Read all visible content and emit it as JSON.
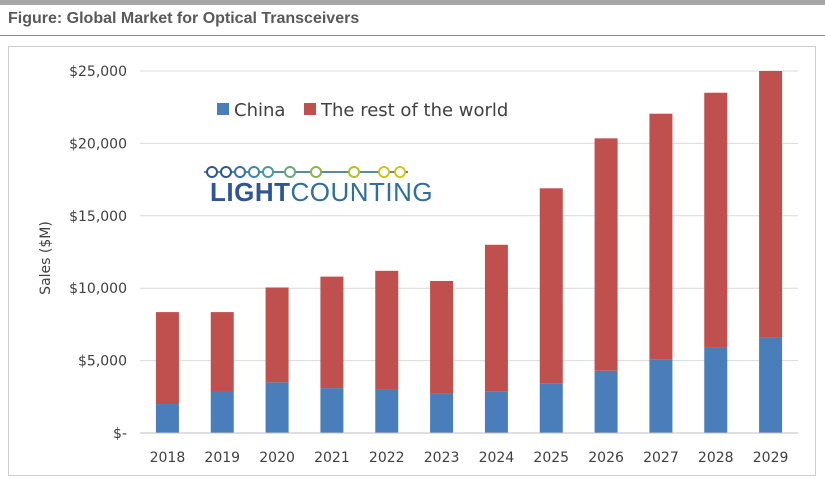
{
  "figure": {
    "title": "Figure: Global Market for Optical Transceivers"
  },
  "logo": {
    "part1": "LIGHT",
    "part2": "COUNTING",
    "color1": "#2f5597",
    "color2": "#2e6f9e"
  },
  "colors": {
    "china": "#4a7ebb",
    "rest": "#c0504d",
    "grid": "#d9d9d9",
    "axis": "#bfbfbf"
  },
  "chart_data": {
    "type": "bar",
    "stacked": true,
    "title": "Figure: Global Market for Optical Transceivers",
    "xlabel": "",
    "ylabel": "Sales ($M)",
    "ylim": [
      0,
      25000
    ],
    "yticks": [
      0,
      5000,
      10000,
      15000,
      20000,
      25000
    ],
    "ytick_labels": [
      "$-",
      "$5,000",
      "$10,000",
      "$15,000",
      "$20,000",
      "$25,000"
    ],
    "categories": [
      "2018",
      "2019",
      "2020",
      "2021",
      "2022",
      "2023",
      "2024",
      "2025",
      "2026",
      "2027",
      "2028",
      "2029"
    ],
    "series": [
      {
        "name": "China",
        "color": "#4a7ebb",
        "values": [
          2000,
          2900,
          3500,
          3100,
          3000,
          2700,
          2850,
          3400,
          4300,
          5100,
          5900,
          6600
        ]
      },
      {
        "name": "The rest of the world",
        "color": "#c0504d",
        "values": [
          6350,
          5450,
          6550,
          7700,
          8200,
          7800,
          10150,
          13500,
          16050,
          16950,
          17600,
          18400
        ]
      }
    ],
    "legend_position": "top-left",
    "grid": true
  }
}
